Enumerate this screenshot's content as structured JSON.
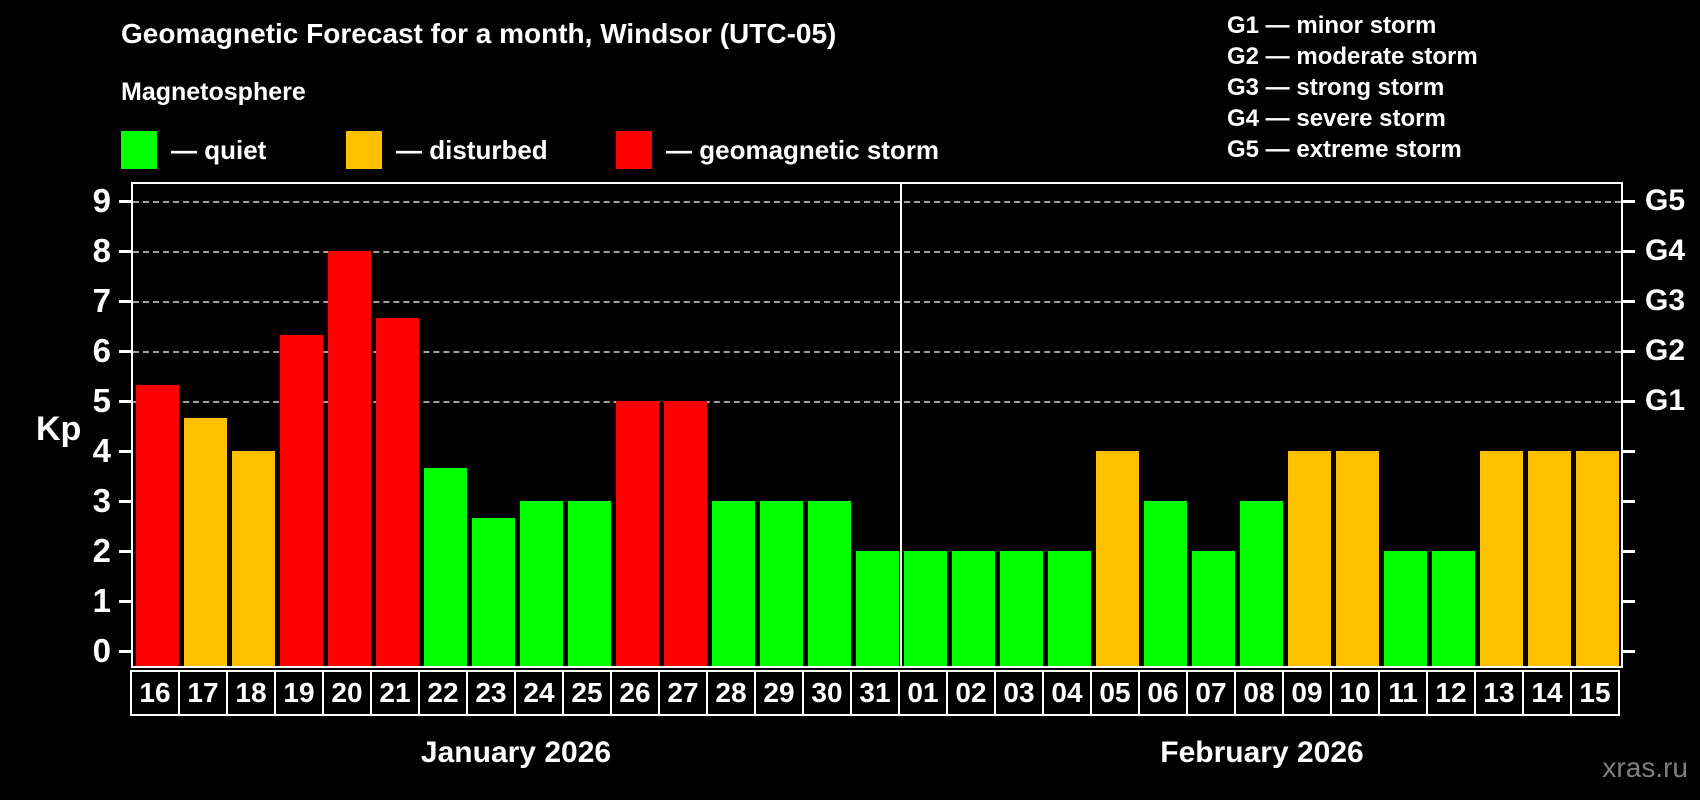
{
  "header": {
    "title": "Geomagnetic Forecast for a month, Windsor (UTC-05)",
    "subtitle": "Magnetosphere"
  },
  "legend": {
    "items": [
      {
        "key": "quiet",
        "label": "— quiet",
        "color": "#00ff00"
      },
      {
        "key": "disturbed",
        "label": "— disturbed",
        "color": "#ffc000"
      },
      {
        "key": "storm",
        "label": "— geomagnetic storm",
        "color": "#ff0000"
      }
    ]
  },
  "g_legend": {
    "items": [
      "G1 — minor storm",
      "G2 — moderate storm",
      "G3 — strong storm",
      "G4 — severe storm",
      "G5 — extreme storm"
    ]
  },
  "chart_data": {
    "type": "bar",
    "title": "Geomagnetic Forecast for a month, Windsor (UTC-05)",
    "ylabel": "Kp",
    "ylim": [
      0,
      9
    ],
    "yticks": [
      0,
      1,
      2,
      3,
      4,
      5,
      6,
      7,
      8,
      9
    ],
    "gridlines_at": [
      5,
      6,
      7,
      8,
      9
    ],
    "grid": "dashed horizontal at storm levels only",
    "right_axis_labels": [
      {
        "kp": 5,
        "label": "G1"
      },
      {
        "kp": 6,
        "label": "G2"
      },
      {
        "kp": 7,
        "label": "G3"
      },
      {
        "kp": 8,
        "label": "G4"
      },
      {
        "kp": 9,
        "label": "G5"
      }
    ],
    "months": [
      {
        "label": "January 2026",
        "days": 16
      },
      {
        "label": "February 2026",
        "days": 15
      }
    ],
    "categories": [
      "16",
      "17",
      "18",
      "19",
      "20",
      "21",
      "22",
      "23",
      "24",
      "25",
      "26",
      "27",
      "28",
      "29",
      "30",
      "31",
      "01",
      "02",
      "03",
      "04",
      "05",
      "06",
      "07",
      "08",
      "09",
      "10",
      "11",
      "12",
      "13",
      "14",
      "15"
    ],
    "values": [
      5.33,
      4.67,
      4,
      6.33,
      8,
      6.67,
      3.67,
      2.67,
      3,
      3,
      5,
      5,
      3,
      3,
      3,
      2,
      2,
      2,
      2,
      2,
      4,
      3,
      2,
      3,
      4,
      4,
      2,
      2,
      4,
      4,
      4
    ],
    "statuses": [
      "storm",
      "disturbed",
      "disturbed",
      "storm",
      "storm",
      "storm",
      "quiet",
      "quiet",
      "quiet",
      "quiet",
      "storm",
      "storm",
      "quiet",
      "quiet",
      "quiet",
      "quiet",
      "quiet",
      "quiet",
      "quiet",
      "quiet",
      "disturbed",
      "quiet",
      "quiet",
      "quiet",
      "disturbed",
      "disturbed",
      "quiet",
      "quiet",
      "disturbed",
      "disturbed",
      "disturbed"
    ],
    "colors_by_status": {
      "quiet": "#00ff00",
      "disturbed": "#ffc000",
      "storm": "#ff0000"
    }
  },
  "watermark": "xras.ru"
}
